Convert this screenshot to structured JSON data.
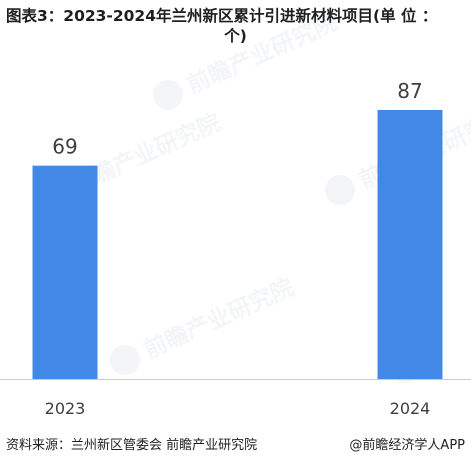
{
  "title_line1": "图表3：2023-2024年兰州新区累计引进新材料项目(单 位 ：",
  "title_line2": "个)",
  "source": "资料来源：兰州新区管委会 前瞻产业研究院",
  "credit": "@前瞻经济学人APP",
  "watermark": "前瞻产业研究院",
  "colors": {
    "bar": "#4388e6",
    "axis": "#cccccc",
    "label": "#3f3f3f"
  },
  "chart_data": {
    "type": "bar",
    "title": "图表3：2023-2024年兰州新区累计引进新材料项目(单 位 ：个)",
    "xlabel": "",
    "ylabel": "",
    "categories": [
      "2023",
      "2024"
    ],
    "values": [
      69,
      87
    ],
    "data_labels": [
      "69",
      "87"
    ],
    "ylim": [
      0,
      87
    ],
    "grid": false,
    "legend": "none"
  }
}
